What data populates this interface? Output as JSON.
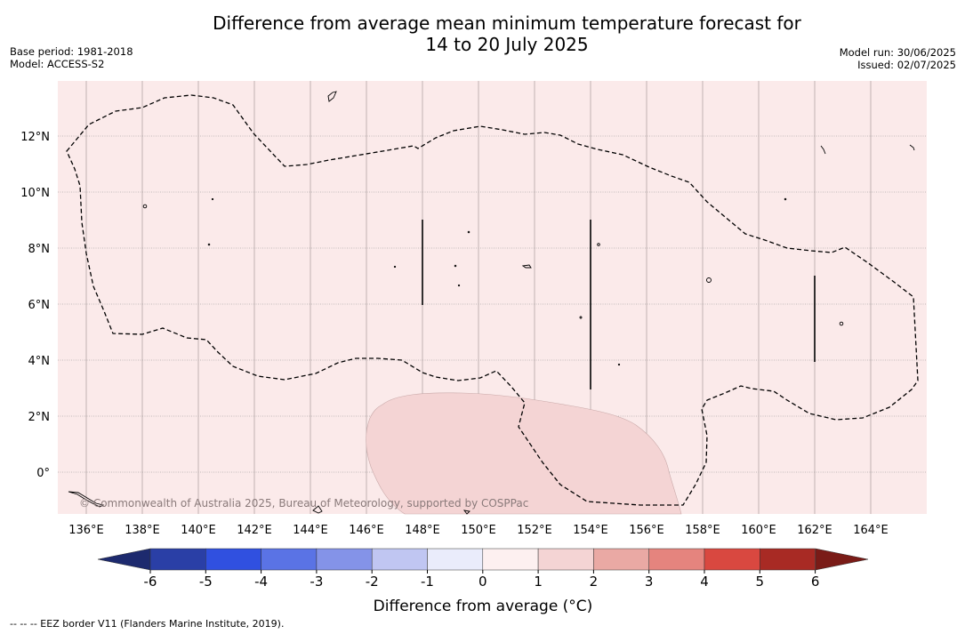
{
  "title": {
    "line1": "Difference from average mean minimum temperature forecast for",
    "line2": "14 to 20 July 2025"
  },
  "meta_left": [
    "Base period: 1981-2018",
    "Model: ACCESS-S2"
  ],
  "meta_right": [
    "Model run: 30/06/2025",
    "Issued: 02/07/2025"
  ],
  "map": {
    "background_color": "#fbeaea",
    "anomaly_patch_color": "#f4d4d4",
    "copyright": "© Commonwealth of Australia 2025, Bureau of Meteorology, supported by COSPPac",
    "lat_ticks": [
      "12°N",
      "10°N",
      "8°N",
      "6°N",
      "4°N",
      "2°N",
      "0°"
    ],
    "lon_ticks": [
      "136°E",
      "138°E",
      "140°E",
      "142°E",
      "144°E",
      "146°E",
      "148°E",
      "150°E",
      "152°E",
      "154°E",
      "156°E",
      "158°E",
      "160°E",
      "162°E",
      "164°E"
    ]
  },
  "colorbar": {
    "label": "Difference from average (°C)",
    "ticks": [
      "-6",
      "-5",
      "-4",
      "-3",
      "-2",
      "-1",
      "0",
      "1",
      "2",
      "3",
      "4",
      "5",
      "6"
    ],
    "low_arrow_color": "#1d2a6e",
    "high_arrow_color": "#7a1b17",
    "colors": [
      "#2a3fa6",
      "#3050e0",
      "#5a73e5",
      "#8493e8",
      "#c0c6f2",
      "#eaecfb",
      "#fdf0f0",
      "#f4d4d4",
      "#eaa9a4",
      "#e5847e",
      "#d94840",
      "#a82a24"
    ]
  },
  "footnote": "--  --  -- EEZ border V11 (Flanders Marine Institute, 2019)."
}
